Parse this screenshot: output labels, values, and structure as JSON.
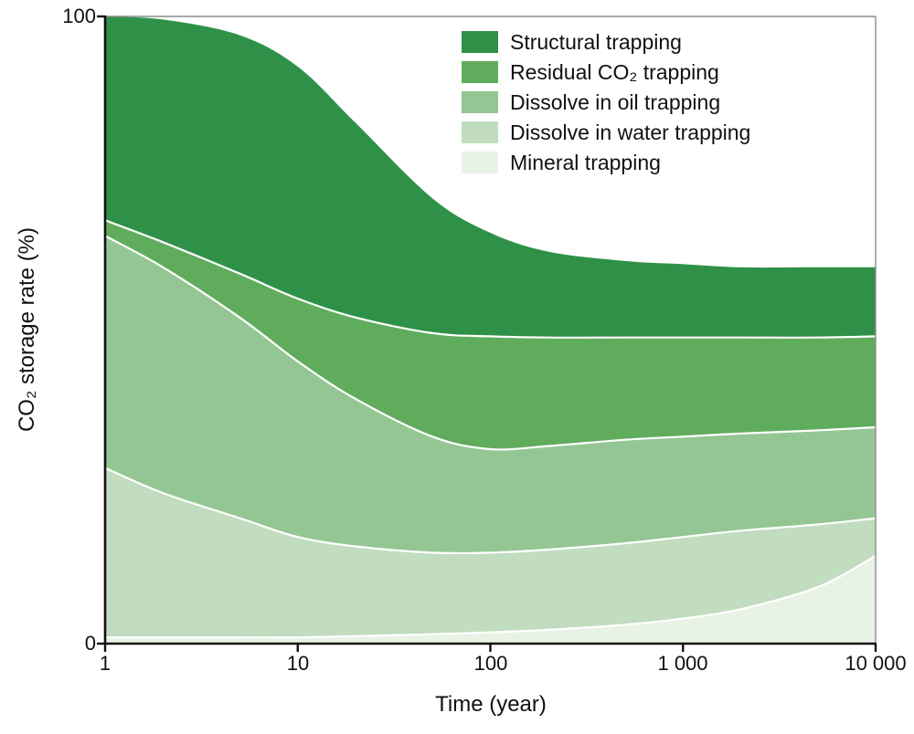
{
  "chart_data": {
    "type": "area",
    "stacked": true,
    "x_scale": "log",
    "title": "",
    "xlabel": "Time (year)",
    "ylabel": "CO₂ storage rate (%)",
    "xlim": [
      1,
      10000
    ],
    "ylim": [
      0,
      100
    ],
    "grid": false,
    "boundary_line_color": "#ffffff",
    "x_ticks": [
      {
        "value": 1,
        "label": "1"
      },
      {
        "value": 10,
        "label": "10"
      },
      {
        "value": 100,
        "label": "100"
      },
      {
        "value": 1000,
        "label": "1 000"
      },
      {
        "value": 10000,
        "label": "10 000"
      }
    ],
    "y_ticks": [
      {
        "value": 0,
        "label": "0"
      },
      {
        "value": 100,
        "label": "100"
      }
    ],
    "x": [
      1,
      2,
      5,
      10,
      20,
      50,
      100,
      200,
      500,
      1000,
      2000,
      5000,
      10000
    ],
    "series": [
      {
        "name": "Mineral trapping",
        "color": "#e8f3e6",
        "values": [
          1,
          1,
          1,
          1,
          1.2,
          1.5,
          1.8,
          2.2,
          3,
          4,
          5.5,
          9,
          14
        ]
      },
      {
        "name": "Dissolve in water trapping",
        "color": "#c1dcbf",
        "values": [
          27,
          23,
          19,
          16,
          14.3,
          13,
          12.7,
          12.8,
          13,
          13,
          12.5,
          10,
          6
        ]
      },
      {
        "name": "Dissolve in oil trapping",
        "color": "#94c693",
        "values": [
          37,
          36,
          32,
          28,
          23.5,
          18.5,
          16.5,
          16.5,
          16.5,
          16,
          15.5,
          15,
          14.5
        ]
      },
      {
        "name": "Residual CO₂ trapping",
        "color": "#60ac5d",
        "values": [
          2.5,
          4,
          7,
          10,
          13,
          16.5,
          18,
          17.3,
          16.3,
          15.8,
          15.3,
          14.8,
          14.5
        ]
      },
      {
        "name": "Structural trapping",
        "color": "#2f9148",
        "values": [
          32.5,
          35.5,
          38,
          37,
          31,
          21.5,
          16.5,
          13.7,
          12.2,
          11.7,
          11.2,
          11.2,
          11
        ]
      }
    ],
    "legend": {
      "position": "inside-top-right",
      "items": [
        {
          "label": "Structural trapping",
          "color": "#2f9148"
        },
        {
          "label": "Residual CO₂ trapping",
          "color": "#60ac5d"
        },
        {
          "label": "Dissolve in oil trapping",
          "color": "#94c693"
        },
        {
          "label": "Dissolve in water trapping",
          "color": "#c1dcbf"
        },
        {
          "label": "Mineral trapping",
          "color": "#e8f3e6"
        }
      ]
    }
  }
}
